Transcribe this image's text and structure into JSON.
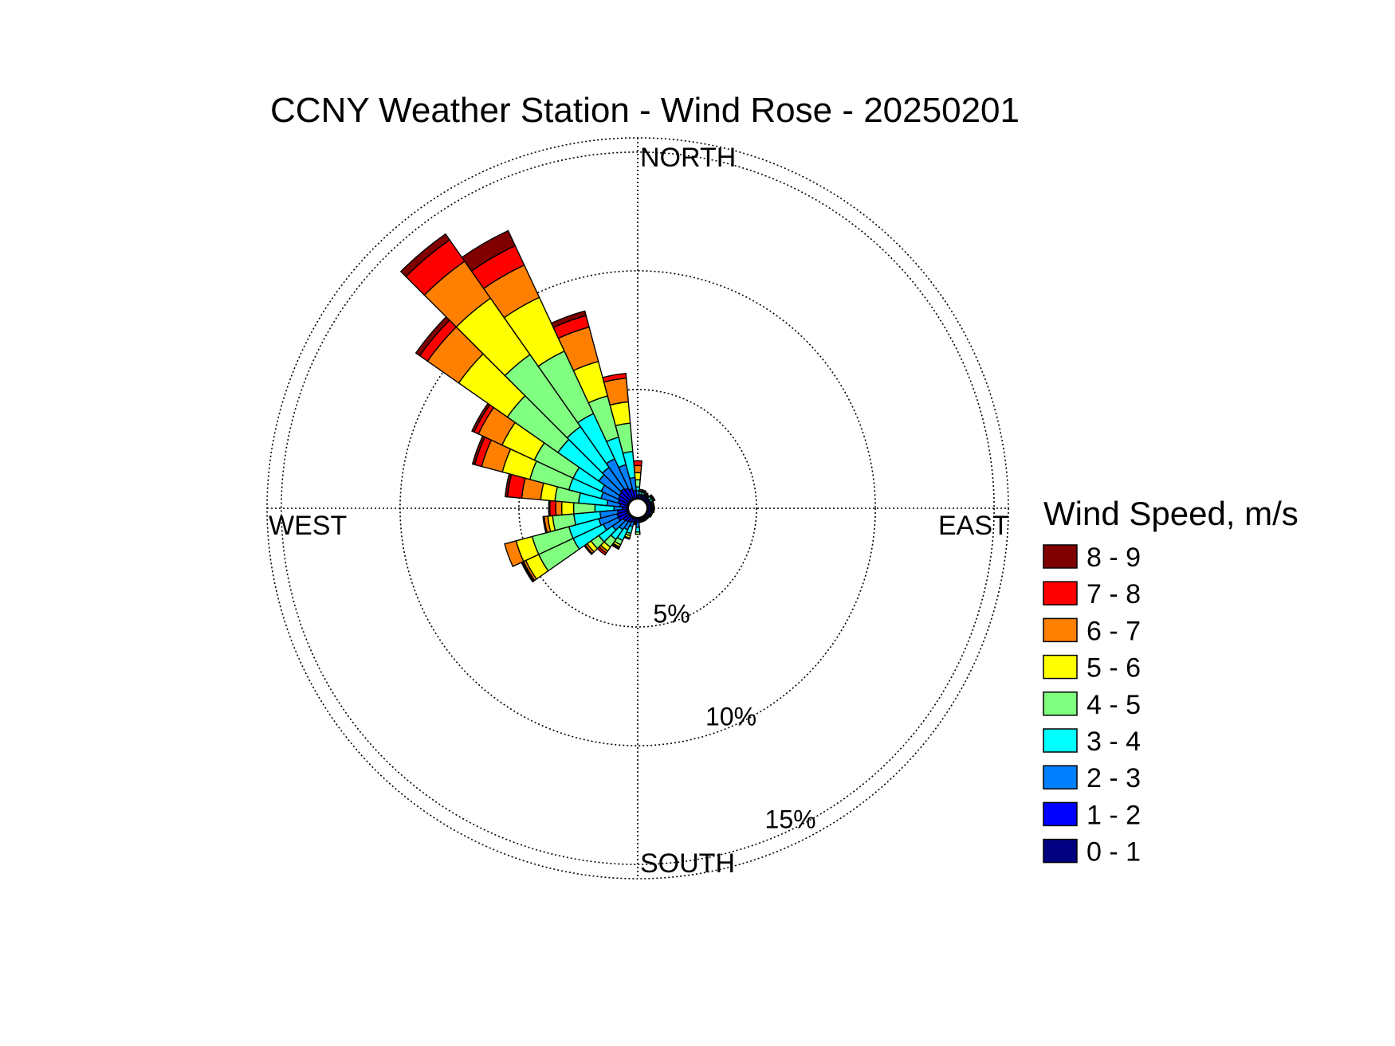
{
  "chart_data": {
    "type": "polar_bar",
    "title": "CCNY Weather Station - Wind Rose - 20250201",
    "directions": {
      "north": "NORTH",
      "south": "SOUTH",
      "east": "EAST",
      "west": "WEST"
    },
    "rings": [
      {
        "value": 5,
        "label": "5%"
      },
      {
        "value": 10,
        "label": "10%"
      },
      {
        "value": 15,
        "label": "15%"
      }
    ],
    "rmax": 15.6,
    "legend": {
      "title": "Wind Speed, m/s",
      "placement": "right",
      "bins": [
        {
          "label": "8 - 9",
          "color": "#800000"
        },
        {
          "label": "7 - 8",
          "color": "#FF0000"
        },
        {
          "label": "6 - 7",
          "color": "#FF8000"
        },
        {
          "label": "5 - 6",
          "color": "#FFFF00"
        },
        {
          "label": "4 - 5",
          "color": "#80FF80"
        },
        {
          "label": "3 - 4",
          "color": "#00FFFF"
        },
        {
          "label": "2 - 3",
          "color": "#0080FF"
        },
        {
          "label": "1 - 2",
          "color": "#0000FF"
        },
        {
          "label": "0 - 1",
          "color": "#000080"
        }
      ]
    },
    "bin_colors_low_to_high": [
      "#000080",
      "#0000FF",
      "#0080FF",
      "#00FFFF",
      "#80FF80",
      "#FFFF00",
      "#FF8000",
      "#FF0000",
      "#800000"
    ],
    "sector_width_deg": 10,
    "calm_radius_pct": 0.4,
    "sectors": [
      {
        "dir": 0,
        "cum": [
          0.45,
          0.55,
          0.75,
          0.9,
          1.2,
          1.5,
          1.8,
          2.0,
          2.0
        ]
      },
      {
        "dir": 10,
        "cum": [
          0.45,
          0.55,
          0.6,
          0.7,
          0.75,
          0.8,
          0.8,
          0.8,
          0.8
        ]
      },
      {
        "dir": 20,
        "cum": [
          0.45,
          0.55,
          0.6,
          0.7,
          0.75,
          0.8,
          0.8,
          0.8,
          0.8
        ]
      },
      {
        "dir": 30,
        "cum": [
          0.45,
          0.55,
          0.6,
          0.65,
          0.7,
          0.75,
          0.75,
          0.75,
          0.75
        ]
      },
      {
        "dir": 40,
        "cum": [
          0.45,
          0.55,
          0.6,
          0.65,
          0.7,
          0.7,
          0.7,
          0.7,
          0.7
        ]
      },
      {
        "dir": 50,
        "cum": [
          0.45,
          0.55,
          0.6,
          0.7,
          0.75,
          0.8,
          0.8,
          0.8,
          0.8
        ]
      },
      {
        "dir": 60,
        "cum": [
          0.45,
          0.55,
          0.6,
          0.7,
          0.75,
          0.8,
          0.8,
          0.8,
          0.8
        ]
      },
      {
        "dir": 70,
        "cum": [
          0.45,
          0.55,
          0.6,
          0.65,
          0.7,
          0.7,
          0.7,
          0.7,
          0.7
        ]
      },
      {
        "dir": 80,
        "cum": [
          0.45,
          0.55,
          0.6,
          0.65,
          0.7,
          0.7,
          0.7,
          0.7,
          0.7
        ]
      },
      {
        "dir": 90,
        "cum": [
          0.45,
          0.55,
          0.6,
          0.65,
          0.7,
          0.7,
          0.7,
          0.7,
          0.7
        ]
      },
      {
        "dir": 100,
        "cum": [
          0.45,
          0.55,
          0.6,
          0.65,
          0.7,
          0.7,
          0.7,
          0.7,
          0.7
        ]
      },
      {
        "dir": 110,
        "cum": [
          0.45,
          0.55,
          0.6,
          0.65,
          0.65,
          0.65,
          0.65,
          0.65,
          0.65
        ]
      },
      {
        "dir": 120,
        "cum": [
          0.45,
          0.55,
          0.6,
          0.65,
          0.65,
          0.65,
          0.65,
          0.65,
          0.65
        ]
      },
      {
        "dir": 130,
        "cum": [
          0.45,
          0.5,
          0.55,
          0.6,
          0.6,
          0.6,
          0.6,
          0.6,
          0.6
        ]
      },
      {
        "dir": 140,
        "cum": [
          0.45,
          0.5,
          0.55,
          0.6,
          0.6,
          0.6,
          0.6,
          0.6,
          0.6
        ]
      },
      {
        "dir": 150,
        "cum": [
          0.45,
          0.5,
          0.55,
          0.6,
          0.6,
          0.6,
          0.6,
          0.6,
          0.6
        ]
      },
      {
        "dir": 160,
        "cum": [
          0.45,
          0.5,
          0.55,
          0.6,
          0.6,
          0.6,
          0.6,
          0.6,
          0.6
        ]
      },
      {
        "dir": 170,
        "cum": [
          0.45,
          0.5,
          0.55,
          0.6,
          0.6,
          0.6,
          0.6,
          0.6,
          0.6
        ]
      },
      {
        "dir": 180,
        "cum": [
          0.45,
          0.6,
          0.8,
          1.0,
          1.1,
          1.1,
          1.1,
          1.1,
          1.1
        ]
      },
      {
        "dir": 190,
        "cum": [
          0.45,
          0.55,
          0.6,
          0.65,
          0.7,
          0.7,
          0.7,
          0.7,
          0.7
        ]
      },
      {
        "dir": 200,
        "cum": [
          0.45,
          0.6,
          0.8,
          1.1,
          1.2,
          1.3,
          1.35,
          1.35,
          1.35
        ]
      },
      {
        "dir": 210,
        "cum": [
          0.45,
          0.65,
          1.0,
          1.5,
          1.7,
          1.8,
          1.85,
          1.9,
          1.9
        ]
      },
      {
        "dir": 220,
        "cum": [
          0.45,
          0.7,
          1.1,
          1.6,
          2.0,
          2.2,
          2.3,
          2.4,
          2.4
        ]
      },
      {
        "dir": 230,
        "cum": [
          0.45,
          0.75,
          1.3,
          2.0,
          2.4,
          2.6,
          2.7,
          2.75,
          2.75
        ]
      },
      {
        "dir": 240,
        "cum": [
          0.45,
          0.9,
          1.6,
          3.0,
          4.6,
          5.2,
          5.3,
          5.35,
          5.4
        ]
      },
      {
        "dir": 250,
        "cum": [
          0.45,
          0.9,
          1.7,
          3.0,
          4.6,
          5.3,
          5.8,
          5.8,
          5.8
        ]
      },
      {
        "dir": 260,
        "cum": [
          0.45,
          0.85,
          1.6,
          2.7,
          3.6,
          3.8,
          3.95,
          4.0,
          4.0
        ]
      },
      {
        "dir": 270,
        "cum": [
          0.45,
          0.65,
          1.0,
          1.8,
          2.7,
          3.2,
          3.45,
          3.7,
          3.75
        ]
      },
      {
        "dir": 280,
        "cum": [
          0.45,
          0.75,
          1.3,
          2.5,
          3.5,
          4.1,
          4.9,
          5.5,
          5.6
        ]
      },
      {
        "dir": 290,
        "cum": [
          0.45,
          0.85,
          1.6,
          3.0,
          4.7,
          5.9,
          6.8,
          7.1,
          7.2
        ]
      },
      {
        "dir": 300,
        "cum": [
          0.45,
          0.9,
          1.7,
          3.0,
          4.8,
          6.3,
          7.4,
          7.6,
          7.7
        ]
      },
      {
        "dir": 310,
        "cum": [
          0.45,
          0.95,
          2.0,
          4.1,
          6.7,
          9.2,
          10.8,
          11.2,
          11.4
        ]
      },
      {
        "dir": 320,
        "cum": [
          0.45,
          1.0,
          2.1,
          4.2,
          7.9,
          10.8,
          12.7,
          13.8,
          14.1
        ]
      },
      {
        "dir": 330,
        "cum": [
          0.45,
          0.95,
          2.3,
          4.4,
          7.3,
          9.8,
          11.3,
          12.2,
          12.9
        ]
      },
      {
        "dir": 340,
        "cum": [
          0.45,
          0.85,
          1.9,
          3.1,
          4.9,
          6.4,
          7.9,
          8.4,
          8.6
        ]
      },
      {
        "dir": 350,
        "cum": [
          0.45,
          0.75,
          1.3,
          2.4,
          3.6,
          4.5,
          5.5,
          5.7,
          5.7
        ]
      }
    ]
  }
}
